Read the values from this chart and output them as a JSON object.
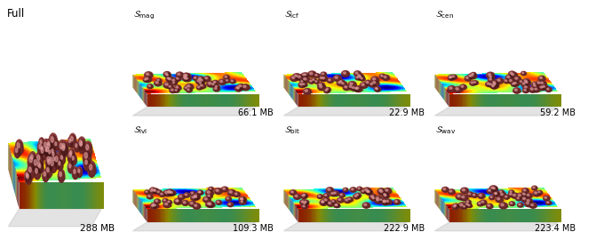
{
  "panels_right": [
    {
      "label": "$\\mathcal{S}_{\\mathrm{mag}}$",
      "mb": "66.1 MB"
    },
    {
      "label": "$\\mathcal{S}_{\\mathrm{lcf}}$",
      "mb": "22.9 MB"
    },
    {
      "label": "$\\mathcal{S}_{\\mathrm{cen}}$",
      "mb": "59.2 MB"
    },
    {
      "label": "$\\mathcal{S}_{\\mathrm{lvl}}$",
      "mb": "109.3 MB"
    },
    {
      "label": "$\\mathcal{S}_{\\mathrm{bit}}$",
      "mb": "222.9 MB"
    },
    {
      "label": "$\\mathcal{S}_{\\mathrm{wav}}$",
      "mb": "223.4 MB"
    }
  ],
  "full_label": "Full",
  "full_mb": "288 MB",
  "bg_color": "#ffffff",
  "fig_width": 6.8,
  "fig_height": 2.7,
  "dpi": 100,
  "sphere_color_main": "#8B3A3A",
  "sphere_color_dark": "#3a1010",
  "sphere_color_light": "#c47a7a",
  "box_left_color": "#1a2a6e",
  "box_front_color": "#1e3080",
  "surface_top_color": "#1a237e"
}
